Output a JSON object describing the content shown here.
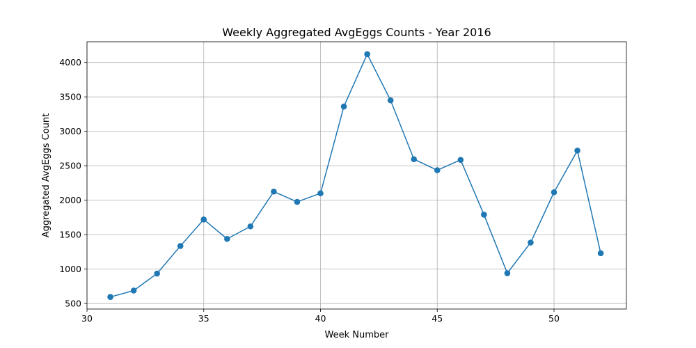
{
  "chart_data": {
    "type": "line",
    "title": "Weekly Aggregated AvgEggs Counts - Year 2016",
    "xlabel": "Week Number",
    "ylabel": "Aggregated AvgEggs Count",
    "x": [
      31,
      32,
      33,
      34,
      35,
      36,
      37,
      38,
      39,
      40,
      41,
      42,
      43,
      44,
      45,
      46,
      47,
      48,
      49,
      50,
      51,
      52
    ],
    "series": [
      {
        "values": [
          595,
          688,
          935,
          1335,
          1720,
          1438,
          1620,
          2125,
          1975,
          2100,
          3360,
          4120,
          3450,
          2595,
          2435,
          2585,
          1790,
          940,
          1385,
          2115,
          2720,
          1230
        ],
        "color": "#1f77b4",
        "marker": "circle"
      }
    ],
    "xlim": [
      30,
      53.1
    ],
    "ylim": [
      420,
      4300
    ],
    "xticks": [
      30,
      35,
      40,
      45,
      50
    ],
    "yticks": [
      500,
      1000,
      1500,
      2000,
      2500,
      3000,
      3500,
      4000
    ],
    "xtick_labels": [
      "30",
      "35",
      "40",
      "45",
      "50"
    ],
    "ytick_labels": [
      "500",
      "1000",
      "1500",
      "2000",
      "2500",
      "3000",
      "3500",
      "4000"
    ],
    "grid": true,
    "legend": false
  }
}
